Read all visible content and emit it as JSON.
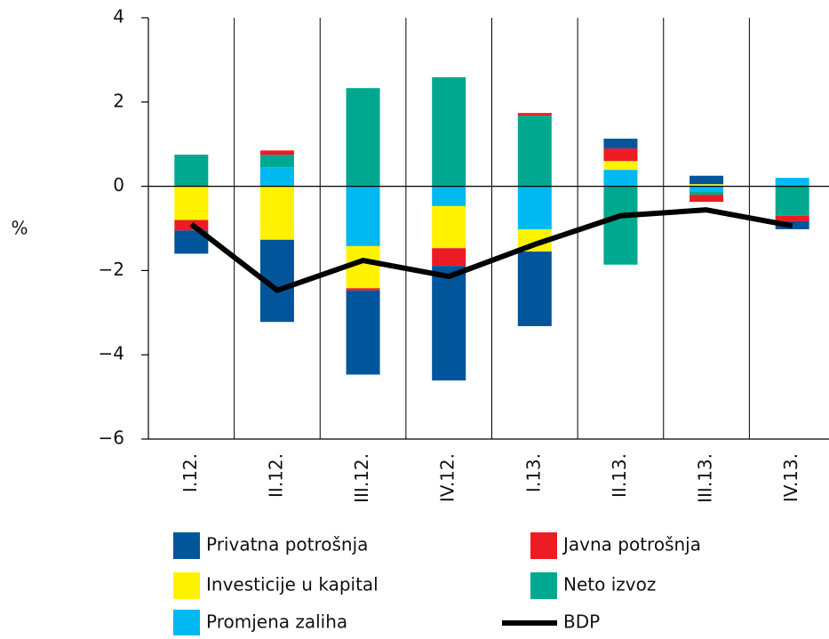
{
  "chart_data": {
    "type": "bar",
    "stacked": true,
    "y_label": "%",
    "categories": [
      "I.12.",
      "II.12.",
      "III.12.",
      "IV.12.",
      "I.13.",
      "II.13.",
      "III.13.",
      "IV.13."
    ],
    "series": [
      {
        "name": "Promjena zaliha",
        "color": "#00b9f1",
        "values": [
          0,
          0.45,
          -1.42,
          -0.47,
          -1.02,
          0.39,
          -0.12,
          0.2
        ]
      },
      {
        "name": "Investicije u kapital",
        "color": "#fff200",
        "values": [
          -0.8,
          -1.27,
          -1.0,
          -1.0,
          -0.53,
          0.21,
          0.05,
          0
        ]
      },
      {
        "name": "Neto izvoz",
        "color": "#00a88f",
        "values": [
          0.75,
          0.3,
          2.33,
          2.59,
          1.68,
          -1.86,
          -0.08,
          -0.7
        ]
      },
      {
        "name": "Javna potrošnja",
        "color": "#ed1c24",
        "values": [
          -0.25,
          0.1,
          -0.05,
          -0.42,
          0.06,
          0.3,
          -0.17,
          -0.13
        ]
      },
      {
        "name": "Privatna potrošnja",
        "color": "#00559b",
        "values": [
          -0.55,
          -1.95,
          -2.0,
          -2.72,
          -1.77,
          0.23,
          0.2,
          -0.19
        ]
      }
    ],
    "line": {
      "name": "BDP",
      "color": "#000000",
      "values": [
        -0.9,
        -2.47,
        -1.76,
        -2.14,
        -1.38,
        -0.7,
        -0.56,
        -0.94
      ]
    },
    "ylim": [
      -6,
      4
    ],
    "yticks": [
      {
        "value": -6,
        "label": "−6"
      },
      {
        "value": -4,
        "label": "−4"
      },
      {
        "value": -2,
        "label": "−2"
      },
      0,
      2,
      4
    ]
  }
}
